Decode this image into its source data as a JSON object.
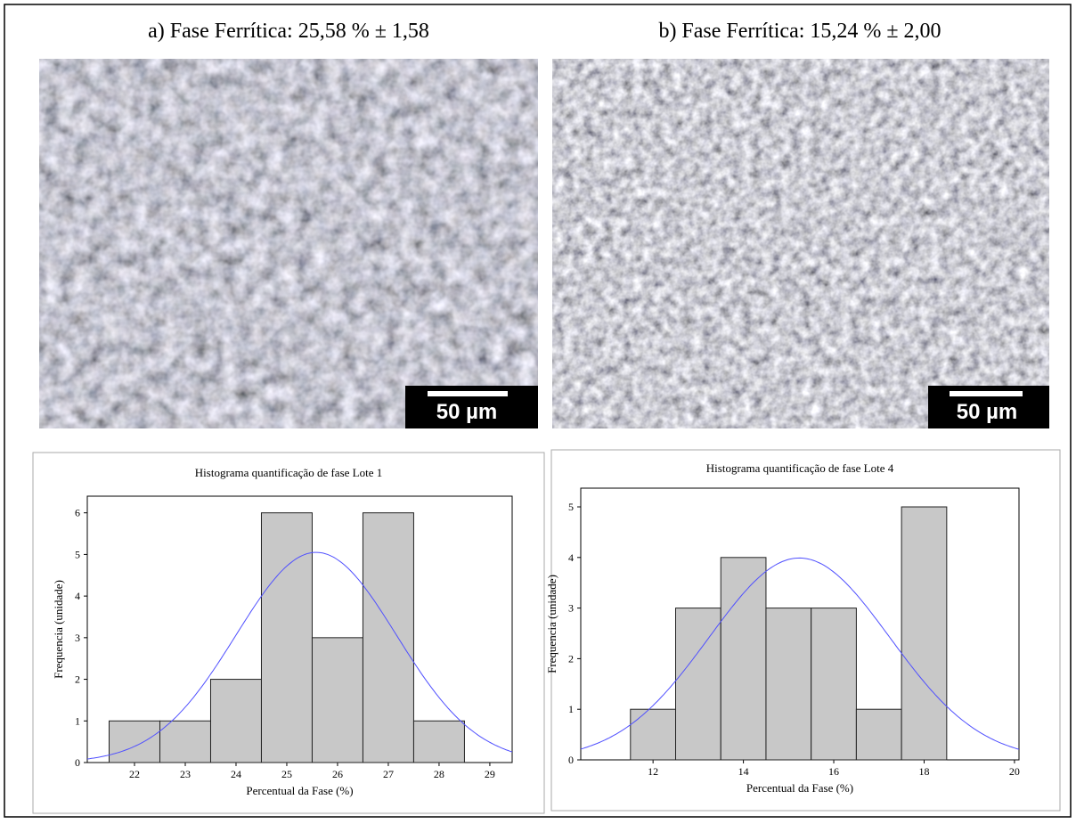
{
  "panels": [
    {
      "caption": "a)  Fase Ferrítica: 25,58 % ± 1,58",
      "scale_bar": "50 µm"
    },
    {
      "caption": "b) Fase Ferrítica: 15,24 % ± 2,00",
      "scale_bar": "50 µm"
    }
  ],
  "chart_data": [
    {
      "type": "histogram",
      "title": "Histograma quantificação de fase Lote 1",
      "x_label": "Percentual da Fase (%)",
      "y_label": "Frequencia (unidade)",
      "bins": [
        21.5,
        22.5,
        23.5,
        24.5,
        25.5,
        26.5,
        27.5,
        28.5
      ],
      "values": [
        1,
        1,
        2,
        6,
        3,
        6,
        1
      ],
      "color": "#c8c8c8",
      "curve": {
        "mean": 25.58,
        "sd": 1.58,
        "color": "#5050ff"
      },
      "xlim": [
        21.07,
        29.44
      ],
      "xticks": [
        22,
        23,
        24,
        25,
        26,
        27,
        28,
        29
      ],
      "ylim": [
        0,
        6.4
      ],
      "yticks": [
        0,
        1,
        2,
        3,
        4,
        5,
        6
      ]
    },
    {
      "type": "histogram",
      "title": "Histograma quantificação de fase Lote 4",
      "x_label": "Percentual da Fase (%)",
      "y_label": "Frequencia (unidade)",
      "bins": [
        11.5,
        12.5,
        13.5,
        14.5,
        15.5,
        16.5,
        17.5,
        18.5
      ],
      "values": [
        1,
        3,
        4,
        3,
        3,
        1,
        5
      ],
      "color": "#c8c8c8",
      "curve": {
        "mean": 15.24,
        "sd": 2.0,
        "color": "#5050ff"
      },
      "xlim": [
        10.4,
        20.1
      ],
      "xticks": [
        12,
        14,
        16,
        18,
        20
      ],
      "ylim": [
        0,
        5.37
      ],
      "yticks": [
        0,
        1,
        2,
        3,
        4,
        5
      ]
    }
  ]
}
